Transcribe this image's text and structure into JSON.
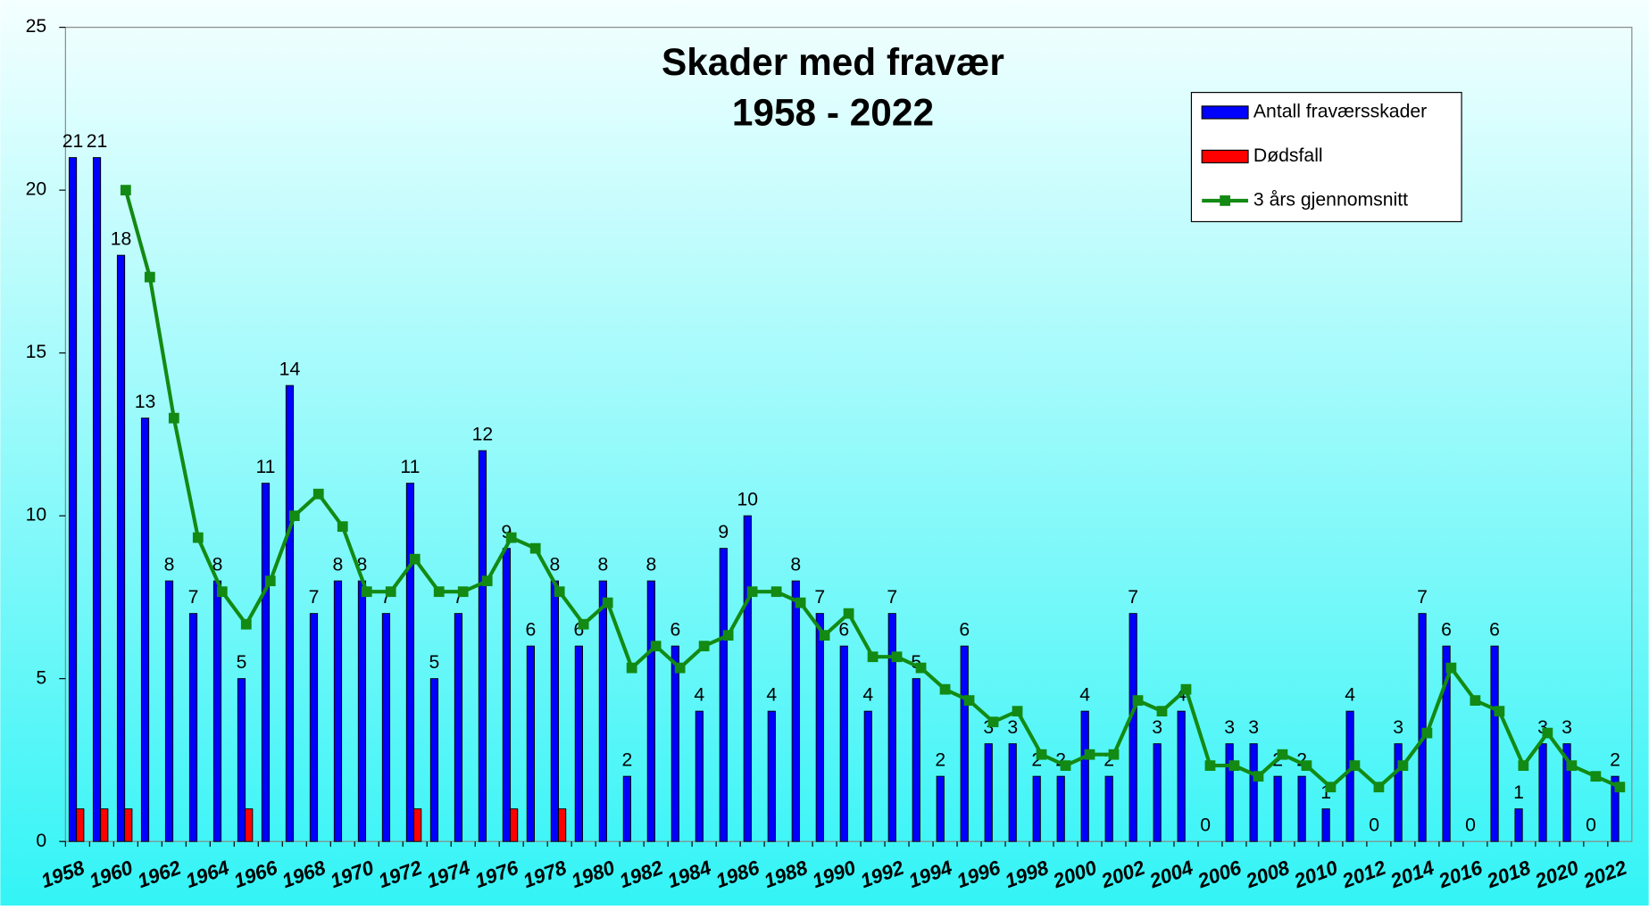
{
  "chart_data": {
    "type": "bar",
    "title": "Skader med fravær",
    "subtitle": "1958 - 2022",
    "categories": [
      "1958",
      null,
      "1960",
      null,
      "1962",
      null,
      "1964",
      null,
      "1966",
      null,
      "1968",
      null,
      "1970",
      null,
      "1972",
      null,
      "1974",
      null,
      "1976",
      null,
      "1978",
      null,
      "1980",
      null,
      "1982",
      null,
      "1984",
      null,
      "1986",
      null,
      "1988",
      null,
      "1990",
      null,
      "1992",
      null,
      "1994",
      null,
      "1996",
      null,
      "1998",
      null,
      "2000",
      null,
      "2002",
      null,
      "2004",
      null,
      "2006",
      null,
      "2008",
      null,
      "2010",
      null,
      "2012",
      null,
      "2014",
      null,
      "2016",
      null,
      "2018",
      null,
      "2020",
      null,
      "2022"
    ],
    "series": [
      {
        "name": "Antall fraværsskader",
        "color": "#0000ff",
        "type": "bar",
        "values": [
          21,
          21,
          18,
          13,
          8,
          7,
          8,
          5,
          11,
          14,
          7,
          8,
          8,
          7,
          11,
          5,
          7,
          12,
          9,
          6,
          8,
          6,
          8,
          2,
          8,
          6,
          4,
          9,
          10,
          4,
          8,
          7,
          6,
          4,
          7,
          5,
          2,
          6,
          3,
          3,
          2,
          2,
          4,
          2,
          7,
          3,
          4,
          0,
          3,
          3,
          2,
          2,
          1,
          4,
          0,
          3,
          7,
          6,
          0,
          6,
          1,
          3,
          3,
          0,
          2
        ]
      },
      {
        "name": "Dødsfall",
        "color": "#ff0000",
        "type": "bar",
        "values": [
          1,
          1,
          1,
          0,
          0,
          0,
          0,
          1,
          0,
          0,
          0,
          0,
          0,
          0,
          1,
          0,
          0,
          0,
          1,
          0,
          1,
          0,
          0,
          0,
          0,
          0,
          0,
          0,
          0,
          0,
          0,
          0,
          0,
          0,
          0,
          0,
          0,
          0,
          0,
          0,
          0,
          0,
          0,
          0,
          0,
          0,
          0,
          0,
          0,
          0,
          0,
          0,
          0,
          0,
          0,
          0,
          0,
          0,
          0,
          0,
          0,
          0,
          0,
          0,
          0
        ]
      },
      {
        "name": "3 års gjennomsnitt",
        "color": "#138a13",
        "type": "line",
        "values": [
          null,
          null,
          20,
          17.33,
          13,
          9.33,
          7.67,
          6.67,
          8,
          10,
          10.67,
          9.67,
          7.67,
          7.67,
          8.67,
          7.67,
          7.67,
          8,
          9.33,
          9,
          7.67,
          6.67,
          7.33,
          5.33,
          6,
          5.33,
          6,
          6.33,
          7.67,
          7.67,
          7.33,
          6.33,
          7,
          5.67,
          5.67,
          5.33,
          4.67,
          4.33,
          3.67,
          4,
          2.67,
          2.33,
          2.67,
          2.67,
          4.33,
          4,
          4.67,
          2.33,
          2.33,
          2,
          2.67,
          2.33,
          1.67,
          2.33,
          1.67,
          2.33,
          3.33,
          5.33,
          4.33,
          4,
          2.33,
          3.33,
          2.33,
          2,
          1.67
        ]
      }
    ],
    "ylim": [
      0,
      25
    ],
    "yticks": [
      0,
      5,
      10,
      15,
      20,
      25
    ],
    "grid": false,
    "legend": "top-right"
  }
}
